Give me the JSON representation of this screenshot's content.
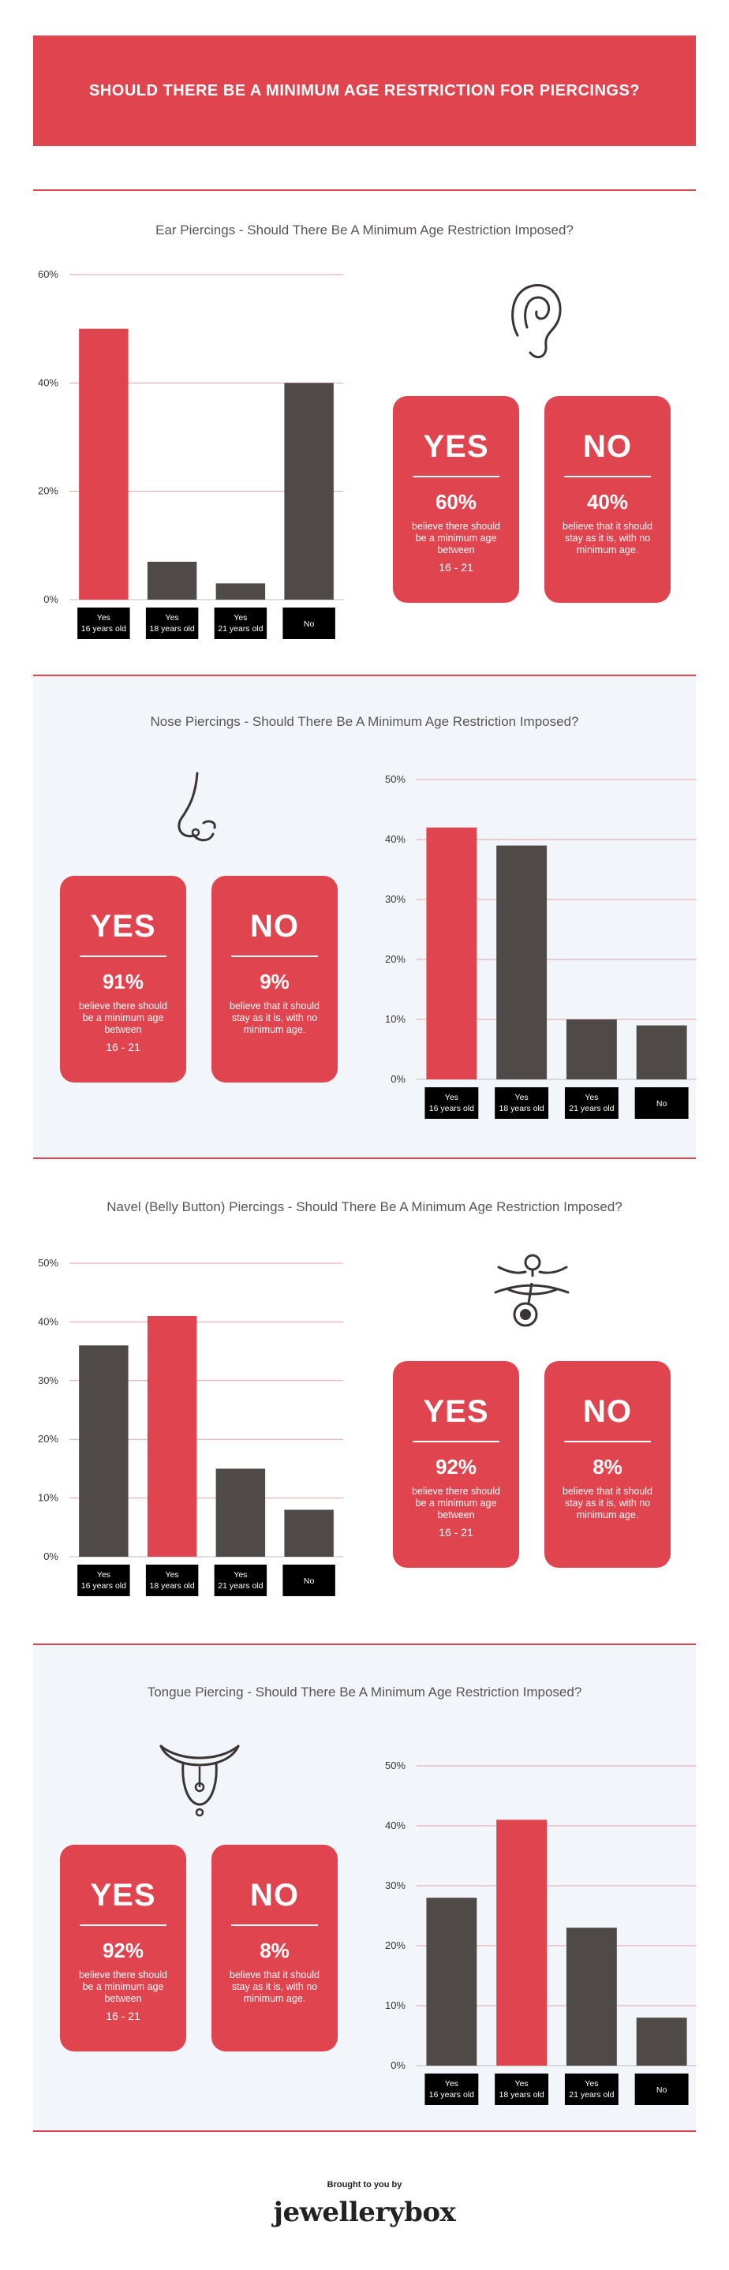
{
  "header": {
    "title": "SHOULD THERE BE A MINIMUM AGE RESTRICTION FOR PIERCINGS?"
  },
  "colors": {
    "accent": "#e0444e",
    "dark": "#4f4a48",
    "grid": "#e6a2a6"
  },
  "sections": [
    {
      "title": "Ear Piercings - Should There Be A Minimum Age Restriction Imposed?",
      "icon": "ear-icon",
      "yes": {
        "label": "YES",
        "pct": "60%",
        "desc": "believe there should be a minimum age between",
        "range": "16 - 21"
      },
      "no": {
        "label": "NO",
        "pct": "40%",
        "desc": "believe that it should stay as it is, with no minimum age."
      }
    },
    {
      "title": "Nose Piercings - Should There Be A Minimum Age Restriction Imposed?",
      "icon": "nose-icon",
      "yes": {
        "label": "YES",
        "pct": "91%",
        "desc": "believe there should be a minimum age between",
        "range": "16 - 21"
      },
      "no": {
        "label": "NO",
        "pct": "9%",
        "desc": "believe that it should stay as it is, with no minimum age."
      }
    },
    {
      "title": "Navel (Belly Button) Piercings - Should There Be A Minimum Age Restriction Imposed?",
      "icon": "navel-icon",
      "yes": {
        "label": "YES",
        "pct": "92%",
        "desc": "believe there should be a minimum age between",
        "range": "16 - 21"
      },
      "no": {
        "label": "NO",
        "pct": "8%",
        "desc": "believe that it should stay as it is, with no minimum age."
      }
    },
    {
      "title": "Tongue Piercing - Should There Be A Minimum Age Restriction Imposed?",
      "icon": "tongue-icon",
      "yes": {
        "label": "YES",
        "pct": "92%",
        "desc": "believe there should be a minimum age between",
        "range": "16 - 21"
      },
      "no": {
        "label": "NO",
        "pct": "8%",
        "desc": "believe that it should stay as it is, with no minimum age."
      }
    }
  ],
  "chart_data": [
    {
      "type": "bar",
      "categories": [
        "Yes 16 years old",
        "Yes 18 years old",
        "Yes 21 years old",
        "No"
      ],
      "values": [
        50,
        7,
        3,
        40
      ],
      "bar_colors": [
        "#e0444e",
        "#4f4a48",
        "#4f4a48",
        "#4f4a48"
      ],
      "yticks": [
        0,
        20,
        40,
        60
      ],
      "ylim": [
        0,
        60
      ],
      "grid": true
    },
    {
      "type": "bar",
      "categories": [
        "Yes 16 years old",
        "Yes 18 years old",
        "Yes 21 years old",
        "No"
      ],
      "values": [
        42,
        39,
        10,
        9
      ],
      "bar_colors": [
        "#e0444e",
        "#4f4a48",
        "#4f4a48",
        "#4f4a48"
      ],
      "yticks": [
        0,
        10,
        20,
        30,
        40,
        50
      ],
      "ylim": [
        0,
        50
      ],
      "grid": true
    },
    {
      "type": "bar",
      "categories": [
        "Yes 16 years old",
        "Yes 18 years old",
        "Yes 21 years old",
        "No"
      ],
      "values": [
        36,
        41,
        15,
        8
      ],
      "bar_colors": [
        "#4f4a48",
        "#e0444e",
        "#4f4a48",
        "#4f4a48"
      ],
      "yticks": [
        0,
        10,
        20,
        30,
        40,
        50
      ],
      "ylim": [
        0,
        50
      ],
      "grid": true
    },
    {
      "type": "bar",
      "categories": [
        "Yes 16 years old",
        "Yes 18 years old",
        "Yes 21 years old",
        "No"
      ],
      "values": [
        28,
        41,
        23,
        8
      ],
      "bar_colors": [
        "#4f4a48",
        "#e0444e",
        "#4f4a48",
        "#4f4a48"
      ],
      "yticks": [
        0,
        10,
        20,
        30,
        40,
        50
      ],
      "ylim": [
        0,
        50
      ],
      "grid": true
    }
  ],
  "footer": {
    "brought": "Brought to you by",
    "logo": "jewellerybox"
  }
}
